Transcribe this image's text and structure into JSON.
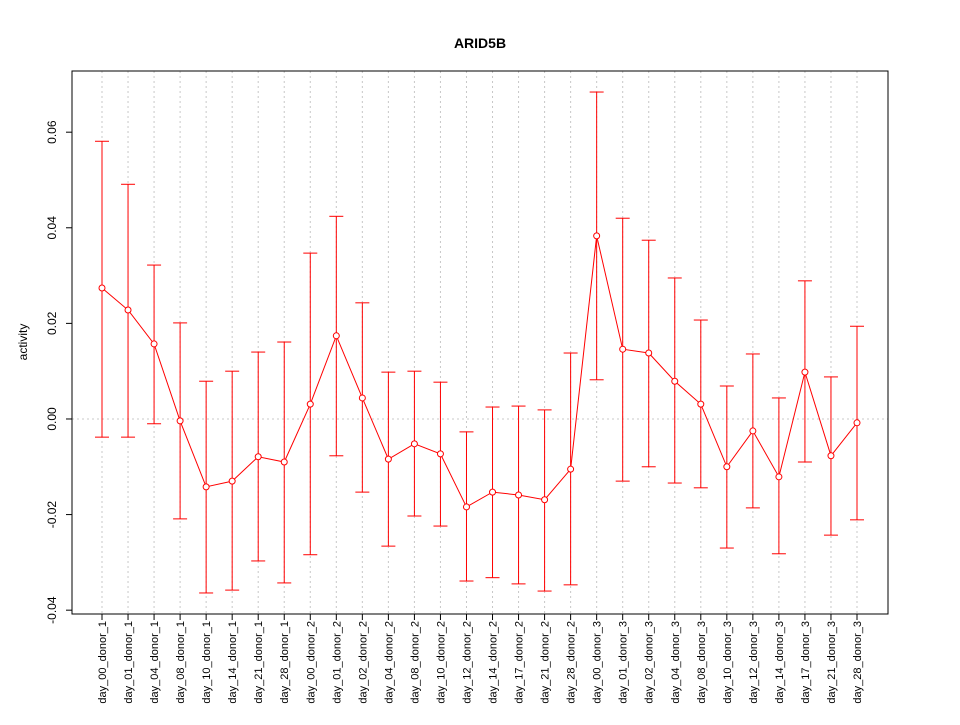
{
  "chart_data": {
    "type": "line",
    "title": "ARID5B",
    "xlabel": "",
    "ylabel": "activity",
    "ylim": [
      -0.0408,
      0.0728
    ],
    "yticks": [
      -0.04,
      -0.02,
      0.0,
      0.02,
      0.04,
      0.06
    ],
    "ytick_labels": [
      "-0.04",
      "-0.02",
      "0.00",
      "0.02",
      "0.04",
      "0.06"
    ],
    "grid": true,
    "color": "#ff0000",
    "categories": [
      "day_00_donor_1",
      "day_01_donor_1",
      "day_04_donor_1",
      "day_08_donor_1",
      "day_10_donor_1",
      "day_14_donor_1",
      "day_21_donor_1",
      "day_28_donor_1",
      "day_00_donor_2",
      "day_01_donor_2",
      "day_02_donor_2",
      "day_04_donor_2",
      "day_08_donor_2",
      "day_10_donor_2",
      "day_12_donor_2",
      "day_14_donor_2",
      "day_17_donor_2",
      "day_21_donor_2",
      "day_28_donor_2",
      "day_00_donor_3",
      "day_01_donor_3",
      "day_02_donor_3",
      "day_04_donor_3",
      "day_08_donor_3",
      "day_10_donor_3",
      "day_12_donor_3",
      "day_14_donor_3",
      "day_17_donor_3",
      "day_21_donor_3",
      "day_28_donor_3"
    ],
    "values": [
      0.0274,
      0.0228,
      0.0157,
      -0.0004,
      -0.0142,
      -0.013,
      -0.0079,
      -0.009,
      0.0031,
      0.0174,
      0.0044,
      -0.0084,
      -0.0052,
      -0.0073,
      -0.0184,
      -0.0153,
      -0.0159,
      -0.0169,
      -0.0105,
      0.0383,
      0.0146,
      0.0138,
      0.0079,
      0.0031,
      -0.01,
      -0.0025,
      -0.0121,
      0.0098,
      -0.0077,
      -0.0008
    ],
    "upper": [
      0.0581,
      0.0491,
      0.0322,
      0.0201,
      0.0079,
      0.01,
      0.014,
      0.0161,
      0.0347,
      0.0424,
      0.0243,
      0.0098,
      0.01,
      0.0077,
      -0.0027,
      0.0025,
      0.0027,
      0.0019,
      0.0138,
      0.0684,
      0.042,
      0.0374,
      0.0295,
      0.0207,
      0.0069,
      0.0136,
      0.0044,
      0.0289,
      0.0088,
      0.0194
    ],
    "lower": [
      -0.0038,
      -0.0038,
      -0.001,
      -0.0209,
      -0.0364,
      -0.0358,
      -0.0297,
      -0.0343,
      -0.0284,
      -0.0077,
      -0.0153,
      -0.0266,
      -0.0203,
      -0.0224,
      -0.0339,
      -0.0332,
      -0.0345,
      -0.036,
      -0.0347,
      0.0082,
      -0.013,
      -0.01,
      -0.0134,
      -0.0144,
      -0.027,
      -0.0186,
      -0.0282,
      -0.009,
      -0.0243,
      -0.0211
    ]
  }
}
